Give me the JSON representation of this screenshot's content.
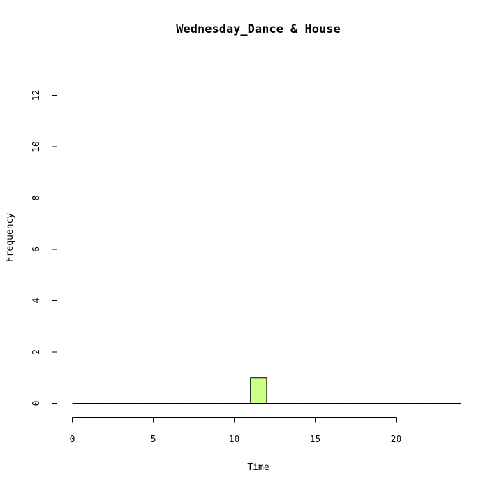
{
  "chart_data": {
    "type": "bar",
    "title": "Wednesday_Dance & House",
    "xlabel": "Time",
    "ylabel": "Frequency",
    "xlim": [
      0,
      24
    ],
    "ylim": [
      0,
      12
    ],
    "x_ticks": [
      0,
      5,
      10,
      15,
      20
    ],
    "y_ticks": [
      0,
      2,
      4,
      6,
      8,
      10,
      12
    ],
    "bins": [
      {
        "start": 0,
        "end": 1,
        "value": 0
      },
      {
        "start": 1,
        "end": 2,
        "value": 0
      },
      {
        "start": 2,
        "end": 3,
        "value": 0
      },
      {
        "start": 3,
        "end": 4,
        "value": 0
      },
      {
        "start": 4,
        "end": 5,
        "value": 0
      },
      {
        "start": 5,
        "end": 6,
        "value": 0
      },
      {
        "start": 6,
        "end": 7,
        "value": 0
      },
      {
        "start": 7,
        "end": 8,
        "value": 0
      },
      {
        "start": 8,
        "end": 9,
        "value": 0
      },
      {
        "start": 9,
        "end": 10,
        "value": 0
      },
      {
        "start": 10,
        "end": 11,
        "value": 0
      },
      {
        "start": 11,
        "end": 12,
        "value": 1
      },
      {
        "start": 12,
        "end": 13,
        "value": 0
      },
      {
        "start": 13,
        "end": 14,
        "value": 0
      },
      {
        "start": 14,
        "end": 15,
        "value": 0
      },
      {
        "start": 15,
        "end": 16,
        "value": 0
      },
      {
        "start": 16,
        "end": 17,
        "value": 0
      },
      {
        "start": 17,
        "end": 18,
        "value": 0
      },
      {
        "start": 18,
        "end": 19,
        "value": 0
      },
      {
        "start": 19,
        "end": 20,
        "value": 0
      },
      {
        "start": 20,
        "end": 21,
        "value": 0
      },
      {
        "start": 21,
        "end": 22,
        "value": 0
      },
      {
        "start": 22,
        "end": 23,
        "value": 0
      },
      {
        "start": 23,
        "end": 24,
        "value": 0
      }
    ],
    "bar_color": "#ccff88",
    "bar_border_color": "#000000",
    "grid": false,
    "legend": "none"
  }
}
